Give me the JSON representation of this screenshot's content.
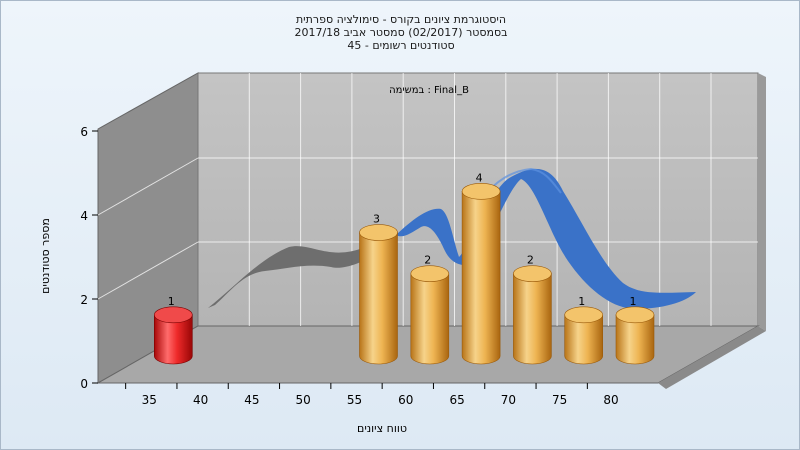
{
  "chart_data": {
    "type": "bar",
    "title_lines": [
      "היסטוגרמת ציונים בקורס - סימולציה ספרתית",
      "בסמסטר  (02/2017)  סמסטר אביב 2017/18",
      "סטודנטים רשומים - 45"
    ],
    "annotation": "במשימה : Final_B",
    "xlabel": "טווח ציונים",
    "ylabel": "מספר סטודנטים",
    "x_ticks": [
      "35",
      "40",
      "45",
      "50",
      "55",
      "60",
      "65",
      "70",
      "75",
      "80"
    ],
    "y_ticks": [
      "0",
      "2",
      "4",
      "6"
    ],
    "ylim": [
      0,
      6
    ],
    "categories": [
      "35",
      "55",
      "60",
      "65",
      "70",
      "75",
      "80"
    ],
    "values": [
      1,
      3,
      2,
      4,
      2,
      1,
      1
    ],
    "highlight_category": "35",
    "colors": {
      "bar": "#e8a33c",
      "bar_highlight": "#e82020",
      "curve": "#3a72c8",
      "curve_shadow": "#6e6e6e",
      "wall_back": "#bcbcbc",
      "wall_side": "#8e8e8e",
      "floor": "#a8a8a8"
    }
  }
}
